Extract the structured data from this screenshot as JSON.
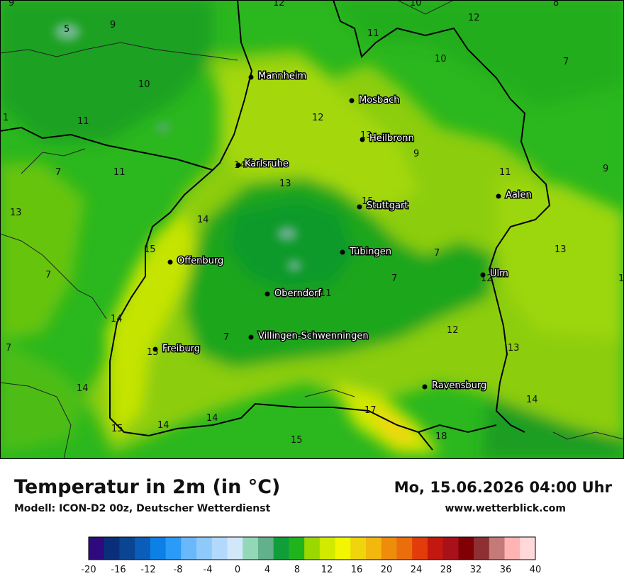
{
  "title": "Temperatur in 2m (in °C)",
  "subtitle": "Modell: ICON-D2 00z, Deutscher Wetterdienst",
  "datetime": "Mo, 15.06.2026 04:00 Uhr",
  "website": "www.wetterblick.com",
  "cities": [
    {
      "name": "Mannheim"
    },
    {
      "name": "Mosbach"
    },
    {
      "name": "Heilbronn"
    },
    {
      "name": "Karlsruhe"
    },
    {
      "name": "Stuttgart"
    },
    {
      "name": "Aalen"
    },
    {
      "name": "Offenburg"
    },
    {
      "name": "Tübingen"
    },
    {
      "name": "Ulm"
    },
    {
      "name": "Oberndorf"
    },
    {
      "name": "Villingen-Schwenningen"
    },
    {
      "name": "Freiburg"
    },
    {
      "name": "Ravensburg"
    }
  ],
  "temperature_values": [
    "9",
    "5",
    "9",
    "12",
    "10",
    "8",
    "12",
    "11",
    "10",
    "7",
    "10",
    "1",
    "11",
    "12",
    "13",
    "9",
    "11",
    "7",
    "11",
    "9",
    "13",
    "14",
    "15",
    "13",
    "14",
    "15",
    "7",
    "7",
    "7",
    "12",
    "13",
    "1",
    "11",
    "14",
    "7",
    "12",
    "7",
    "15",
    "14",
    "13",
    "15",
    "17",
    "14",
    "14",
    "18",
    "15",
    "14"
  ],
  "legend": {
    "colors": [
      "#2e0a7e",
      "#0a2f7a",
      "#0b4592",
      "#0a5db8",
      "#0d80e6",
      "#2b9bf7",
      "#6ab8fb",
      "#8ec9fb",
      "#b2d9fb",
      "#d3e7fb",
      "#92d8b8",
      "#62b08c",
      "#0f9e3a",
      "#20b41c",
      "#9bd800",
      "#d1ea00",
      "#f2f600",
      "#f0d40c",
      "#f3b80e",
      "#ee8c0c",
      "#ea6f0c",
      "#e23c0a",
      "#c3180f",
      "#a8111a",
      "#810006",
      "#8e2f34",
      "#c57a7a",
      "#ffb4b4",
      "#ffd9da"
    ],
    "ticks": [
      "-20",
      "-16",
      "-12",
      "-8",
      "-4",
      "0",
      "4",
      "8",
      "12",
      "16",
      "20",
      "24",
      "28",
      "32",
      "36",
      "40"
    ]
  }
}
